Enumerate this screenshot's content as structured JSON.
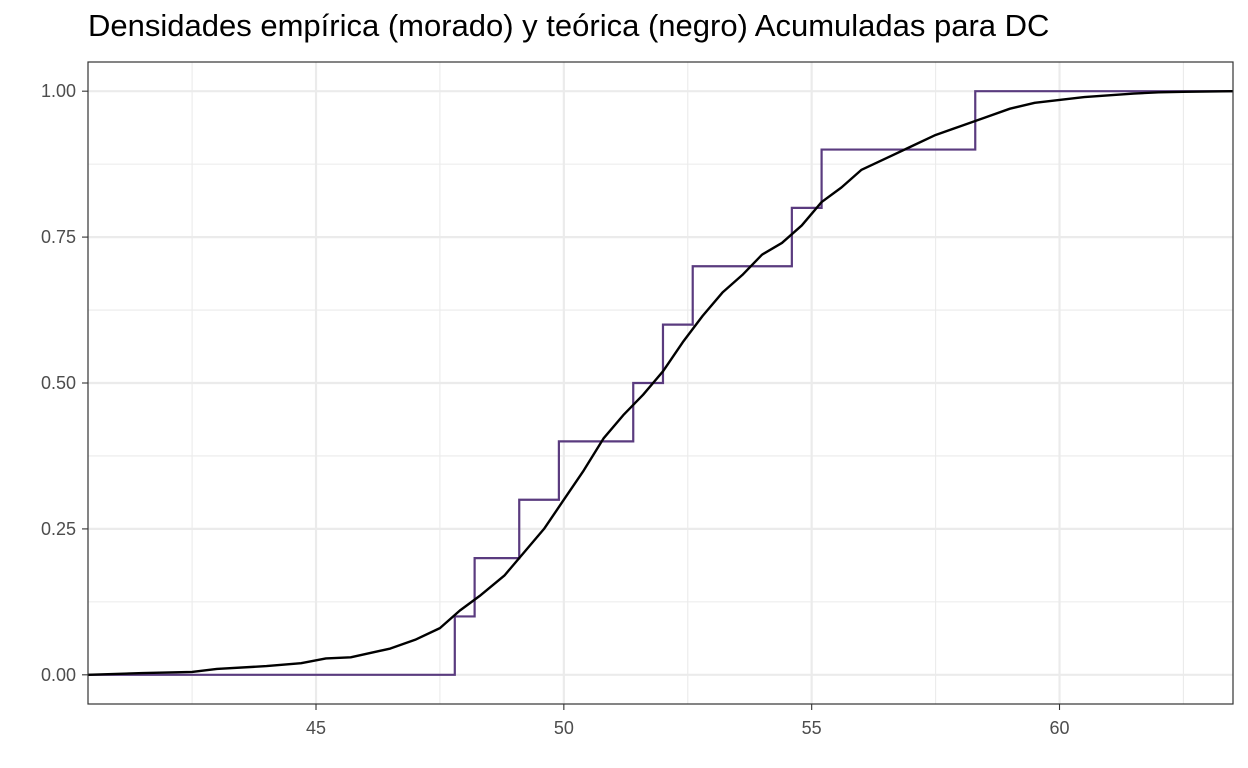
{
  "chart_data": {
    "type": "line",
    "title": "Densidades empírica (morado) y teórica (negro) Acumuladas para DC",
    "xlabel": "",
    "ylabel": "",
    "xlim": [
      40.4,
      63.5
    ],
    "ylim": [
      -0.05,
      1.05
    ],
    "x_ticks": [
      45,
      50,
      55,
      60
    ],
    "x_tick_labels": [
      "45",
      "50",
      "55",
      "60"
    ],
    "y_ticks": [
      0,
      0.25,
      0.5,
      0.75,
      1
    ],
    "y_tick_labels": [
      "0.00",
      "0.25",
      "0.50",
      "0.75",
      "1.00"
    ],
    "grid": true,
    "legend": "none",
    "colors": {
      "empirical": "#5a3b7f",
      "theoretical": "#000000",
      "grid": "#ebebeb",
      "panel_border": "#333333"
    },
    "series": [
      {
        "kind": "empirical-step",
        "x": [
          40.4,
          47.8,
          48.2,
          49.1,
          49.9,
          51.4,
          52.0,
          52.6,
          54.6,
          55.2,
          58.3,
          63.5
        ],
        "y": [
          0.0,
          0.1,
          0.2,
          0.3,
          0.4,
          0.5,
          0.6,
          0.7,
          0.8,
          0.9,
          1.0,
          1.0
        ]
      },
      {
        "kind": "theoretical-curve",
        "x": [
          40.4,
          41.5,
          42.5,
          43.0,
          44.0,
          44.7,
          45.2,
          45.7,
          46.5,
          47.0,
          47.5,
          47.9,
          48.3,
          48.8,
          49.2,
          49.6,
          50.0,
          50.4,
          50.8,
          51.2,
          51.6,
          52.0,
          52.4,
          52.8,
          53.2,
          53.6,
          54.0,
          54.4,
          54.8,
          55.2,
          55.6,
          56.0,
          56.5,
          57.0,
          57.5,
          58.0,
          58.5,
          59.0,
          59.5,
          60.0,
          60.5,
          61.0,
          61.5,
          62.0,
          62.5,
          63.5
        ],
        "y": [
          0.0,
          0.003,
          0.005,
          0.01,
          0.015,
          0.02,
          0.028,
          0.03,
          0.045,
          0.06,
          0.08,
          0.11,
          0.135,
          0.17,
          0.21,
          0.25,
          0.3,
          0.35,
          0.405,
          0.445,
          0.48,
          0.52,
          0.57,
          0.615,
          0.655,
          0.685,
          0.72,
          0.74,
          0.77,
          0.81,
          0.835,
          0.865,
          0.885,
          0.905,
          0.925,
          0.94,
          0.955,
          0.97,
          0.98,
          0.985,
          0.99,
          0.993,
          0.996,
          0.998,
          0.999,
          1.0
        ]
      }
    ]
  }
}
